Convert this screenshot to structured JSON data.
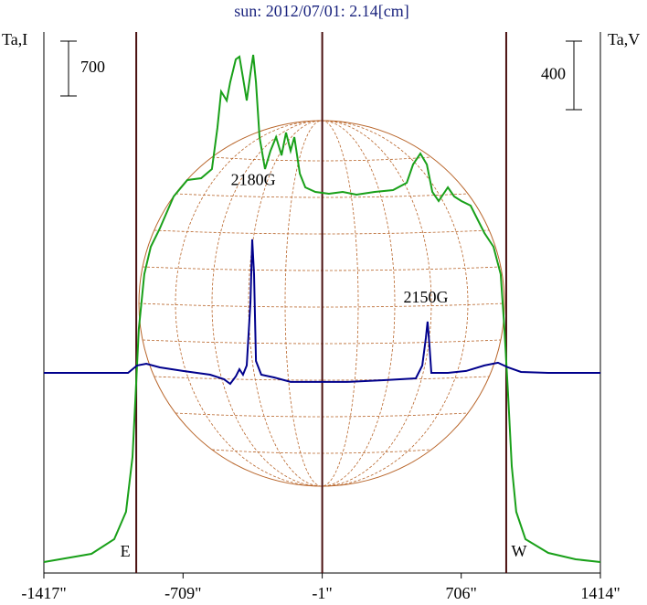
{
  "chart_data": {
    "type": "line",
    "title": "sun: 2012/07/01: 2.14[cm]",
    "y_axis_label": "Ta,I",
    "y2_axis_label": "Ta,V",
    "xlim": [
      -1417,
      1414
    ],
    "xticks": [
      {
        "value": -1417,
        "label": "-1417\""
      },
      {
        "value": -709,
        "label": "-709\""
      },
      {
        "value": -1,
        "label": "-1\""
      },
      {
        "value": 706,
        "label": "706\""
      },
      {
        "value": 1414,
        "label": "1414\""
      }
    ],
    "ylim": [
      0,
      6907
    ],
    "y2lim": [
      -1168,
      1989
    ],
    "y_scale_bar": 700,
    "y2_scale_bar": 400,
    "markers": [
      {
        "x": -947,
        "label": "E"
      },
      {
        "x": -1
      },
      {
        "x": 935,
        "label": "W"
      }
    ],
    "annotations": [
      {
        "text": "2180G",
        "x": -352,
        "y": 5000
      },
      {
        "text": "2150G",
        "x": 526,
        "y": 3500
      }
    ],
    "series": [
      {
        "color": "#19a019",
        "x": [
          -1417,
          -1175,
          -1059,
          -999,
          -966,
          -952,
          -934,
          -906,
          -873,
          -827,
          -757,
          -687,
          -617,
          -562,
          -534,
          -515,
          -487,
          -469,
          -441,
          -422,
          -404,
          -385,
          -366,
          -352,
          -338,
          -320,
          -292,
          -264,
          -236,
          -208,
          -185,
          -162,
          -143,
          -115,
          -87,
          -36,
          33,
          103,
          173,
          266,
          359,
          429,
          461,
          498,
          531,
          559,
          591,
          638,
          670,
          707,
          754,
          777,
          824,
          870,
          907,
          926,
          944,
          963,
          986,
          1033,
          1149,
          1288,
          1414
        ],
        "values": [
          140,
          245,
          432,
          782,
          1482,
          2182,
          3115,
          3815,
          4165,
          4398,
          4807,
          5017,
          5040,
          5157,
          5682,
          6148,
          6032,
          6265,
          6557,
          6592,
          6323,
          6032,
          6382,
          6615,
          6265,
          5565,
          5157,
          5390,
          5565,
          5332,
          5623,
          5390,
          5565,
          5098,
          4923,
          4865,
          4842,
          4865,
          4830,
          4865,
          4888,
          4982,
          5215,
          5355,
          5215,
          4865,
          4748,
          4923,
          4807,
          4748,
          4690,
          4573,
          4340,
          4165,
          3815,
          3115,
          2298,
          1365,
          782,
          432,
          257,
          175,
          140
        ]
      },
      {
        "color": "#00008c",
        "axis": "y2",
        "x": [
          -1417,
          -1175,
          -989,
          -943,
          -896,
          -827,
          -710,
          -571,
          -501,
          -469,
          -441,
          -422,
          -404,
          -385,
          -366,
          -357,
          -348,
          -338,
          -311,
          -246,
          -162,
          -60,
          126,
          312,
          475,
          508,
          526,
          535,
          545,
          554,
          638,
          731,
          824,
          893,
          944,
          1010,
          1149,
          1414
        ],
        "values": [
          0,
          0,
          0,
          43,
          53,
          32,
          11,
          -11,
          -37,
          -64,
          -21,
          21,
          -11,
          43,
          416,
          779,
          576,
          69,
          -11,
          -27,
          -53,
          -53,
          -53,
          -43,
          -32,
          43,
          203,
          299,
          149,
          0,
          0,
          11,
          43,
          59,
          32,
          5,
          0,
          0
        ]
      }
    ]
  }
}
